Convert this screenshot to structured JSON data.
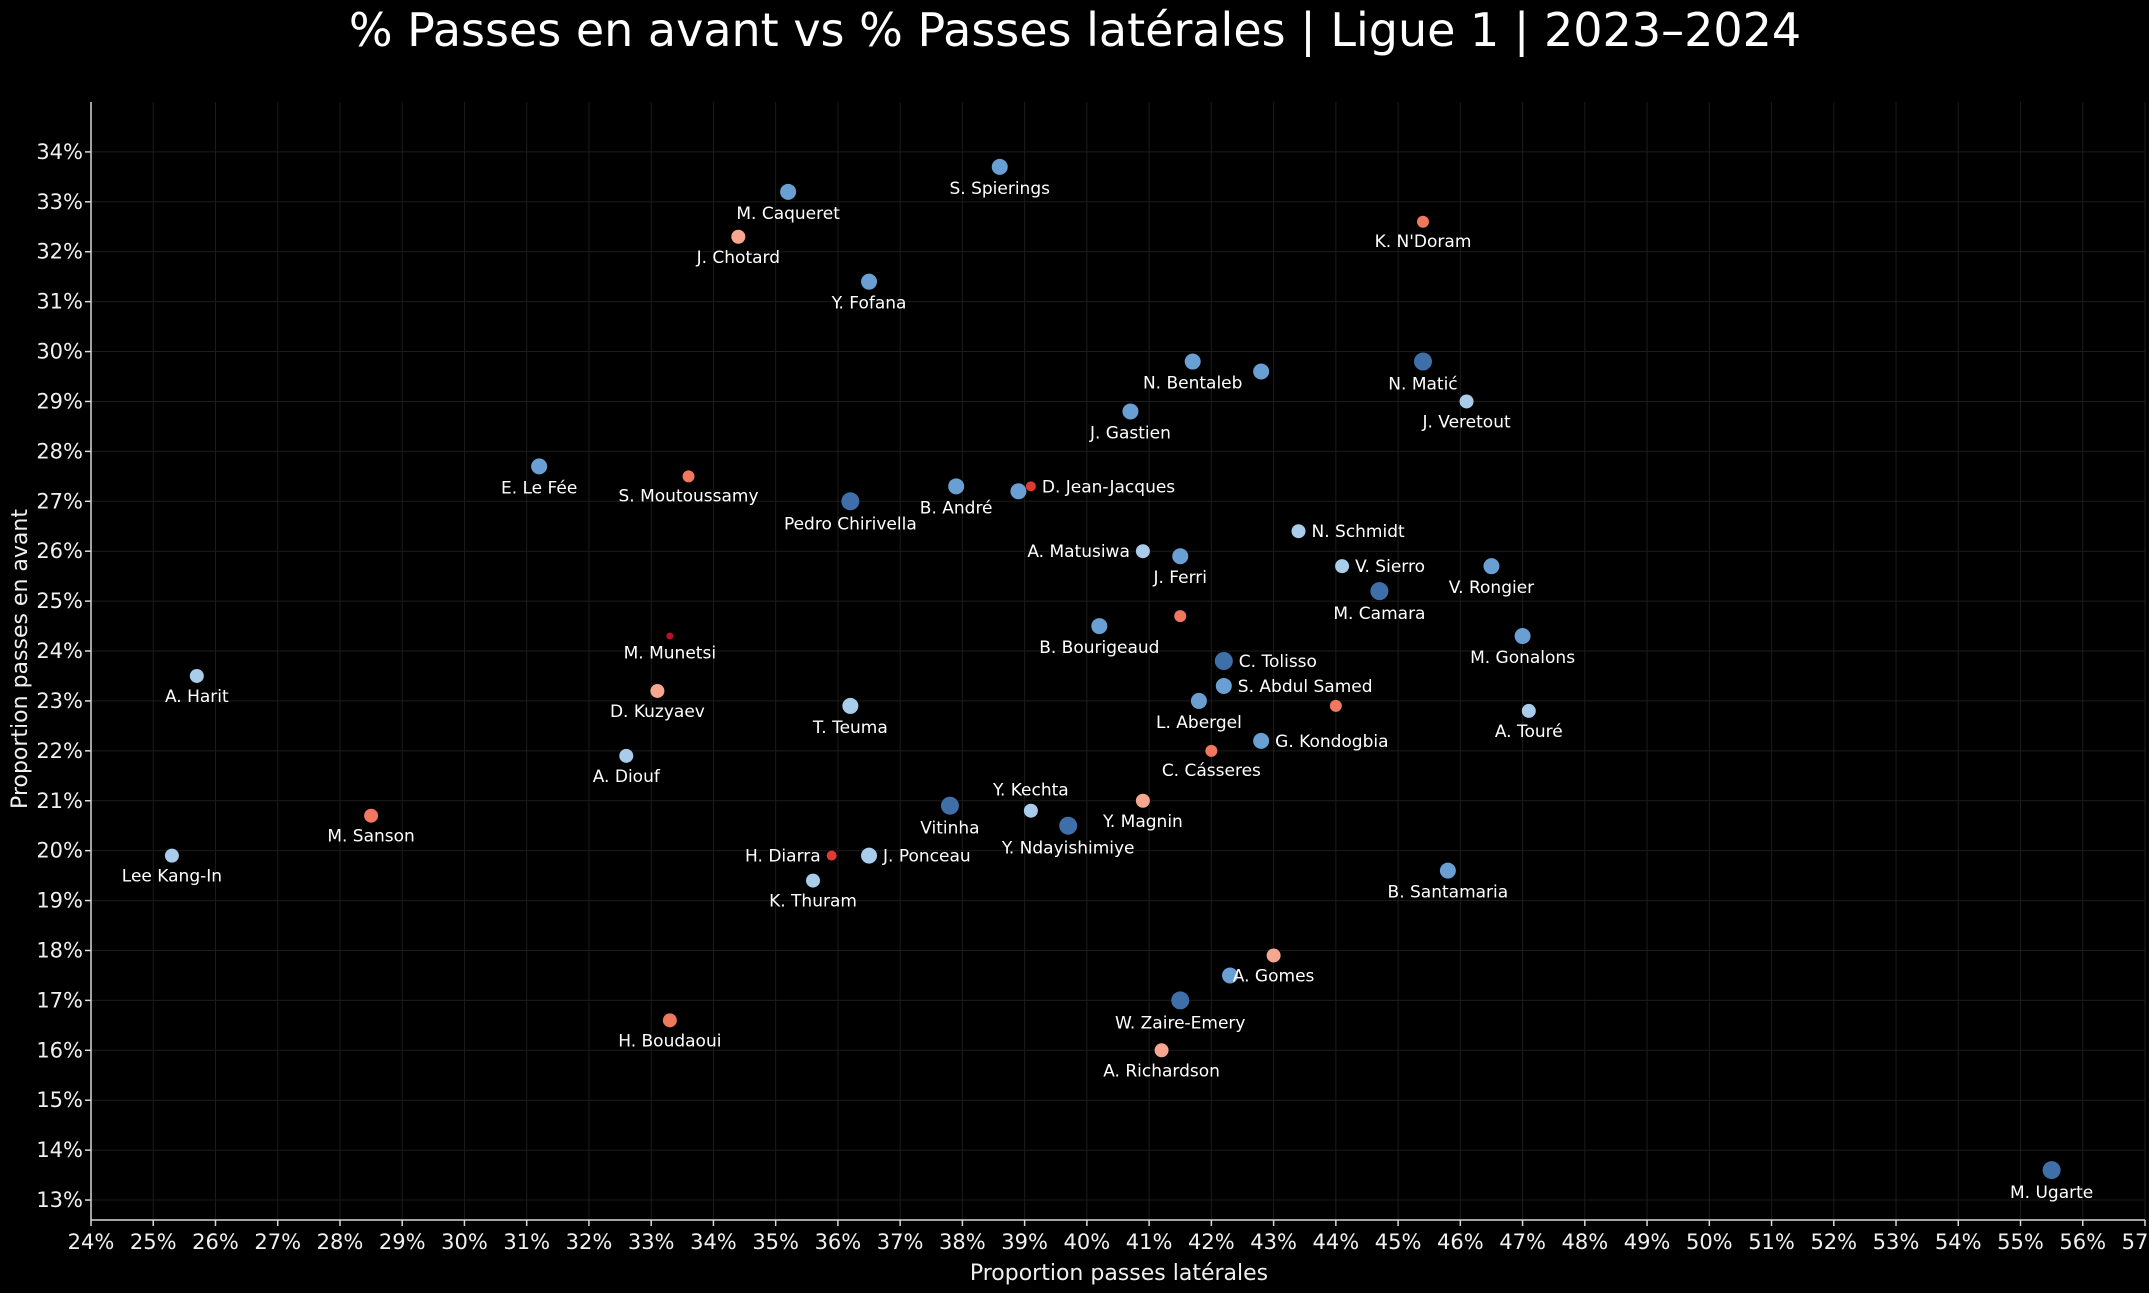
{
  "chart_data": {
    "type": "scatter",
    "title": "% Passes en avant vs % Passes latérales | Ligue 1 | 2023–2024",
    "xlabel": "Proportion passes latérales",
    "ylabel": "Proportion passes en avant",
    "xlim": [
      24,
      57
    ],
    "ylim": [
      12.6,
      35
    ],
    "xticks": [
      24,
      25,
      26,
      27,
      28,
      29,
      30,
      31,
      32,
      33,
      34,
      35,
      36,
      37,
      38,
      39,
      40,
      41,
      42,
      43,
      44,
      45,
      46,
      47,
      48,
      49,
      50,
      51,
      52,
      53,
      54,
      55,
      56,
      57
    ],
    "yticks": [
      13,
      14,
      15,
      16,
      17,
      18,
      19,
      20,
      21,
      22,
      23,
      24,
      25,
      26,
      27,
      28,
      29,
      30,
      31,
      32,
      33,
      34
    ],
    "tick_suffix": "%",
    "grid": true,
    "colors": {
      "dark_blue": "#3f6fa8",
      "mid_blue": "#6a9fd3",
      "light_blue": "#a8ccea",
      "salmon": "#f7a78f",
      "coral": "#f0785e",
      "red": "#e03b32",
      "dark_red": "#b8102a"
    },
    "points": [
      {
        "label": "S. Spierings",
        "x": 38.6,
        "y": 33.7,
        "r": 8,
        "color": "mid_blue",
        "lpos": "below"
      },
      {
        "label": "M. Caqueret",
        "x": 35.2,
        "y": 33.2,
        "r": 8,
        "color": "mid_blue",
        "lpos": "below"
      },
      {
        "label": "J. Chotard",
        "x": 34.4,
        "y": 32.3,
        "r": 7,
        "color": "salmon",
        "lpos": "below"
      },
      {
        "label": "Y. Fofana",
        "x": 36.5,
        "y": 31.4,
        "r": 8,
        "color": "mid_blue",
        "lpos": "below"
      },
      {
        "label": "K. N'Doram",
        "x": 45.4,
        "y": 32.6,
        "r": 6,
        "color": "coral",
        "lpos": "below"
      },
      {
        "label": "N. Bentaleb",
        "x": 41.7,
        "y": 29.8,
        "r": 8,
        "color": "mid_blue",
        "lpos": "below"
      },
      {
        "label": "",
        "x": 42.8,
        "y": 29.6,
        "r": 8,
        "color": "mid_blue",
        "lpos": "none"
      },
      {
        "label": "N. Matić",
        "x": 45.4,
        "y": 29.8,
        "r": 9,
        "color": "dark_blue",
        "lpos": "below"
      },
      {
        "label": "J. Veretout",
        "x": 46.1,
        "y": 29.0,
        "r": 7,
        "color": "light_blue",
        "lpos": "below"
      },
      {
        "label": "J. Gastien",
        "x": 40.7,
        "y": 28.8,
        "r": 8,
        "color": "mid_blue",
        "lpos": "below"
      },
      {
        "label": "E. Le Fée",
        "x": 31.2,
        "y": 27.7,
        "r": 8,
        "color": "mid_blue",
        "lpos": "below"
      },
      {
        "label": "S. Moutoussamy",
        "x": 33.6,
        "y": 27.5,
        "r": 6,
        "color": "coral",
        "lpos": "below"
      },
      {
        "label": "Pedro Chirivella",
        "x": 36.2,
        "y": 27.0,
        "r": 9,
        "color": "dark_blue",
        "lpos": "below"
      },
      {
        "label": "B. André",
        "x": 37.9,
        "y": 27.3,
        "r": 8,
        "color": "mid_blue",
        "lpos": "below"
      },
      {
        "label": "",
        "x": 38.9,
        "y": 27.2,
        "r": 8,
        "color": "mid_blue",
        "lpos": "none"
      },
      {
        "label": "D. Jean-Jacques",
        "x": 39.1,
        "y": 27.3,
        "r": 5,
        "color": "red",
        "lpos": "right"
      },
      {
        "label": "N. Schmidt",
        "x": 43.4,
        "y": 26.4,
        "r": 7,
        "color": "light_blue",
        "lpos": "right"
      },
      {
        "label": "A. Matusiwa",
        "x": 40.9,
        "y": 26.0,
        "r": 7,
        "color": "light_blue",
        "lpos": "left"
      },
      {
        "label": "J. Ferri",
        "x": 41.5,
        "y": 25.9,
        "r": 8,
        "color": "mid_blue",
        "lpos": "below"
      },
      {
        "label": "V. Sierro",
        "x": 44.1,
        "y": 25.7,
        "r": 7,
        "color": "light_blue",
        "lpos": "right"
      },
      {
        "label": "V. Rongier",
        "x": 46.5,
        "y": 25.7,
        "r": 8,
        "color": "mid_blue",
        "lpos": "below"
      },
      {
        "label": "M. Camara",
        "x": 44.7,
        "y": 25.2,
        "r": 9,
        "color": "dark_blue",
        "lpos": "below"
      },
      {
        "label": "",
        "x": 41.5,
        "y": 24.7,
        "r": 6,
        "color": "coral",
        "lpos": "none"
      },
      {
        "label": "B. Bourigeaud",
        "x": 40.2,
        "y": 24.5,
        "r": 8,
        "color": "mid_blue",
        "lpos": "below"
      },
      {
        "label": "M. Gonalons",
        "x": 47.0,
        "y": 24.3,
        "r": 8,
        "color": "mid_blue",
        "lpos": "below"
      },
      {
        "label": "M. Munetsi",
        "x": 33.3,
        "y": 24.3,
        "r": 3.5,
        "color": "dark_red",
        "lpos": "below"
      },
      {
        "label": "C. Tolisso",
        "x": 42.2,
        "y": 23.8,
        "r": 9,
        "color": "dark_blue",
        "lpos": "right"
      },
      {
        "label": "A. Harit",
        "x": 25.7,
        "y": 23.5,
        "r": 7,
        "color": "light_blue",
        "lpos": "below"
      },
      {
        "label": "S. Abdul Samed",
        "x": 42.2,
        "y": 23.3,
        "r": 8,
        "color": "mid_blue",
        "lpos": "right"
      },
      {
        "label": "D. Kuzyaev",
        "x": 33.1,
        "y": 23.2,
        "r": 7,
        "color": "salmon",
        "lpos": "below"
      },
      {
        "label": "T. Teuma",
        "x": 36.2,
        "y": 22.9,
        "r": 8,
        "color": "light_blue",
        "lpos": "below"
      },
      {
        "label": "L. Abergel",
        "x": 41.8,
        "y": 23.0,
        "r": 8,
        "color": "mid_blue",
        "lpos": "below"
      },
      {
        "label": "",
        "x": 44.0,
        "y": 22.9,
        "r": 6,
        "color": "coral",
        "lpos": "none"
      },
      {
        "label": "A. Touré",
        "x": 47.1,
        "y": 22.8,
        "r": 7,
        "color": "light_blue",
        "lpos": "below"
      },
      {
        "label": "G. Kondogbia",
        "x": 42.8,
        "y": 22.2,
        "r": 8,
        "color": "mid_blue",
        "lpos": "right"
      },
      {
        "label": "C. Cásseres",
        "x": 42.0,
        "y": 22.0,
        "r": 6,
        "color": "coral",
        "lpos": "below"
      },
      {
        "label": "A. Diouf",
        "x": 32.6,
        "y": 21.9,
        "r": 7,
        "color": "light_blue",
        "lpos": "below"
      },
      {
        "label": "Y. Kechta",
        "x": 39.1,
        "y": 20.8,
        "r": 7,
        "color": "light_blue",
        "lpos": "above"
      },
      {
        "label": "Y. Magnin",
        "x": 40.9,
        "y": 21.0,
        "r": 7,
        "color": "salmon",
        "lpos": "below"
      },
      {
        "label": "Vitinha",
        "x": 37.8,
        "y": 20.9,
        "r": 9,
        "color": "dark_blue",
        "lpos": "below"
      },
      {
        "label": "Y. Ndayishimiye",
        "x": 39.7,
        "y": 20.5,
        "r": 9,
        "color": "dark_blue",
        "lpos": "below"
      },
      {
        "label": "M. Sanson",
        "x": 28.5,
        "y": 20.7,
        "r": 7,
        "color": "coral",
        "lpos": "below"
      },
      {
        "label": "Lee Kang-In",
        "x": 25.3,
        "y": 19.9,
        "r": 7,
        "color": "light_blue",
        "lpos": "below"
      },
      {
        "label": "H. Diarra",
        "x": 35.9,
        "y": 19.9,
        "r": 5,
        "color": "red",
        "lpos": "left"
      },
      {
        "label": "J. Ponceau",
        "x": 36.5,
        "y": 19.9,
        "r": 8,
        "color": "light_blue",
        "lpos": "right"
      },
      {
        "label": "K. Thuram",
        "x": 35.6,
        "y": 19.4,
        "r": 7,
        "color": "light_blue",
        "lpos": "below"
      },
      {
        "label": "B. Santamaria",
        "x": 45.8,
        "y": 19.6,
        "r": 8,
        "color": "mid_blue",
        "lpos": "below"
      },
      {
        "label": "A. Gomes",
        "x": 43.0,
        "y": 17.9,
        "r": 7,
        "color": "salmon",
        "lpos": "below"
      },
      {
        "label": "",
        "x": 42.3,
        "y": 17.5,
        "r": 8,
        "color": "mid_blue",
        "lpos": "none"
      },
      {
        "label": "W. Zaire-Emery",
        "x": 41.5,
        "y": 17.0,
        "r": 9,
        "color": "dark_blue",
        "lpos": "below"
      },
      {
        "label": "H. Boudaoui",
        "x": 33.3,
        "y": 16.6,
        "r": 7,
        "color": "coral",
        "lpos": "below"
      },
      {
        "label": "A. Richardson",
        "x": 41.2,
        "y": 16.0,
        "r": 7,
        "color": "salmon",
        "lpos": "below"
      },
      {
        "label": "M. Ugarte",
        "x": 55.5,
        "y": 13.6,
        "r": 9,
        "color": "dark_blue",
        "lpos": "below"
      }
    ]
  }
}
